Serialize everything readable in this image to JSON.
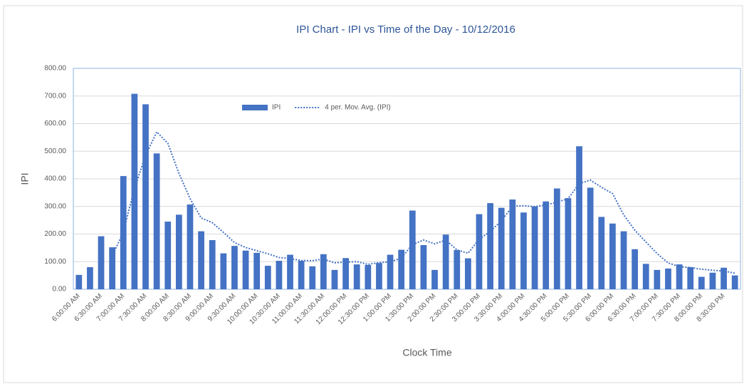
{
  "chart_data": {
    "type": "bar",
    "title": "IPI Chart - IPI vs Time of the Day - 10/12/2016",
    "x_label": "Clock Time",
    "y_label": "IPI",
    "categories": [
      "6:00:00 AM",
      null,
      "6:30:00 AM",
      null,
      "7:00:00 AM",
      null,
      "7:30:00 AM",
      null,
      "8:00:00 AM",
      null,
      "8:30:00 AM",
      null,
      "9:00:00 AM",
      null,
      "9:30:00 AM",
      null,
      "10:00:00 AM",
      null,
      "10:30:00 AM",
      null,
      "11:00:00 AM",
      null,
      "11:30:00 AM",
      null,
      "12:00:00 PM",
      null,
      "12:30:00 PM",
      null,
      "1:00:00 PM",
      null,
      "1:30:00 PM",
      null,
      "2:00:00 PM",
      null,
      "2:30:00 PM",
      null,
      "3:00:00 PM",
      null,
      "3:30:00 PM",
      null,
      "4:00:00 PM",
      null,
      "4:30:00 PM",
      null,
      "5:00:00 PM",
      null,
      "5:30:00 PM",
      null,
      "6:00:00 PM",
      null,
      "6:30:00 PM",
      null,
      "7:00:00 PM",
      null,
      "7:30:00 PM",
      null,
      "8:00:00 PM",
      null,
      "8:30:00 PM",
      null
    ],
    "series": [
      {
        "name": "IPI",
        "type": "bar",
        "color": "#4472c4",
        "values": [
          52,
          80,
          192,
          152,
          410,
          708,
          670,
          492,
          245,
          270,
          307,
          210,
          178,
          130,
          157,
          140,
          132,
          85,
          103,
          125,
          103,
          83,
          127,
          70,
          113,
          90,
          88,
          95,
          125,
          143,
          285,
          160,
          70,
          198,
          142,
          112,
          272,
          312,
          295,
          325,
          278,
          300,
          318,
          365,
          330,
          518,
          368,
          262,
          238,
          210,
          145,
          92,
          70,
          75,
          90,
          80,
          45,
          60,
          78,
          50
        ]
      },
      {
        "name": "4 per. Mov. Avg. (IPI)",
        "type": "line",
        "dash": "dotted",
        "color": "#4472c4",
        "values": [
          null,
          null,
          null,
          119,
          208.5,
          365.5,
          485,
          570,
          528.75,
          419.25,
          328.5,
          258,
          241.25,
          206.25,
          168.75,
          151.25,
          139.75,
          128.5,
          115,
          111.25,
          104,
          103.5,
          109.5,
          95.75,
          98.25,
          100,
          90.25,
          96.5,
          99.5,
          112.75,
          162,
          178.25,
          164.5,
          178.25,
          142.5,
          130.5,
          181,
          209.5,
          247.75,
          301,
          302.5,
          299.5,
          305.25,
          315.25,
          328.25,
          382.75,
          395.25,
          369.5,
          346.5,
          269.5,
          213.75,
          171.25,
          129.25,
          95.5,
          81.75,
          78.75,
          72.5,
          68.75,
          65.75,
          58.25
        ]
      }
    ],
    "ylim": [
      0,
      800
    ],
    "yticks": [
      {
        "value": 0,
        "label": "0.00"
      },
      {
        "value": 100,
        "label": "100.00"
      },
      {
        "value": 200,
        "label": "200.00"
      },
      {
        "value": 300,
        "label": "300.00"
      },
      {
        "value": 400,
        "label": "400.00"
      },
      {
        "value": 500,
        "label": "500.00"
      },
      {
        "value": 600,
        "label": "600.00"
      },
      {
        "value": 700,
        "label": "700.00"
      },
      {
        "value": 800,
        "label": "800.00"
      }
    ],
    "grid": true,
    "legend": "top"
  }
}
